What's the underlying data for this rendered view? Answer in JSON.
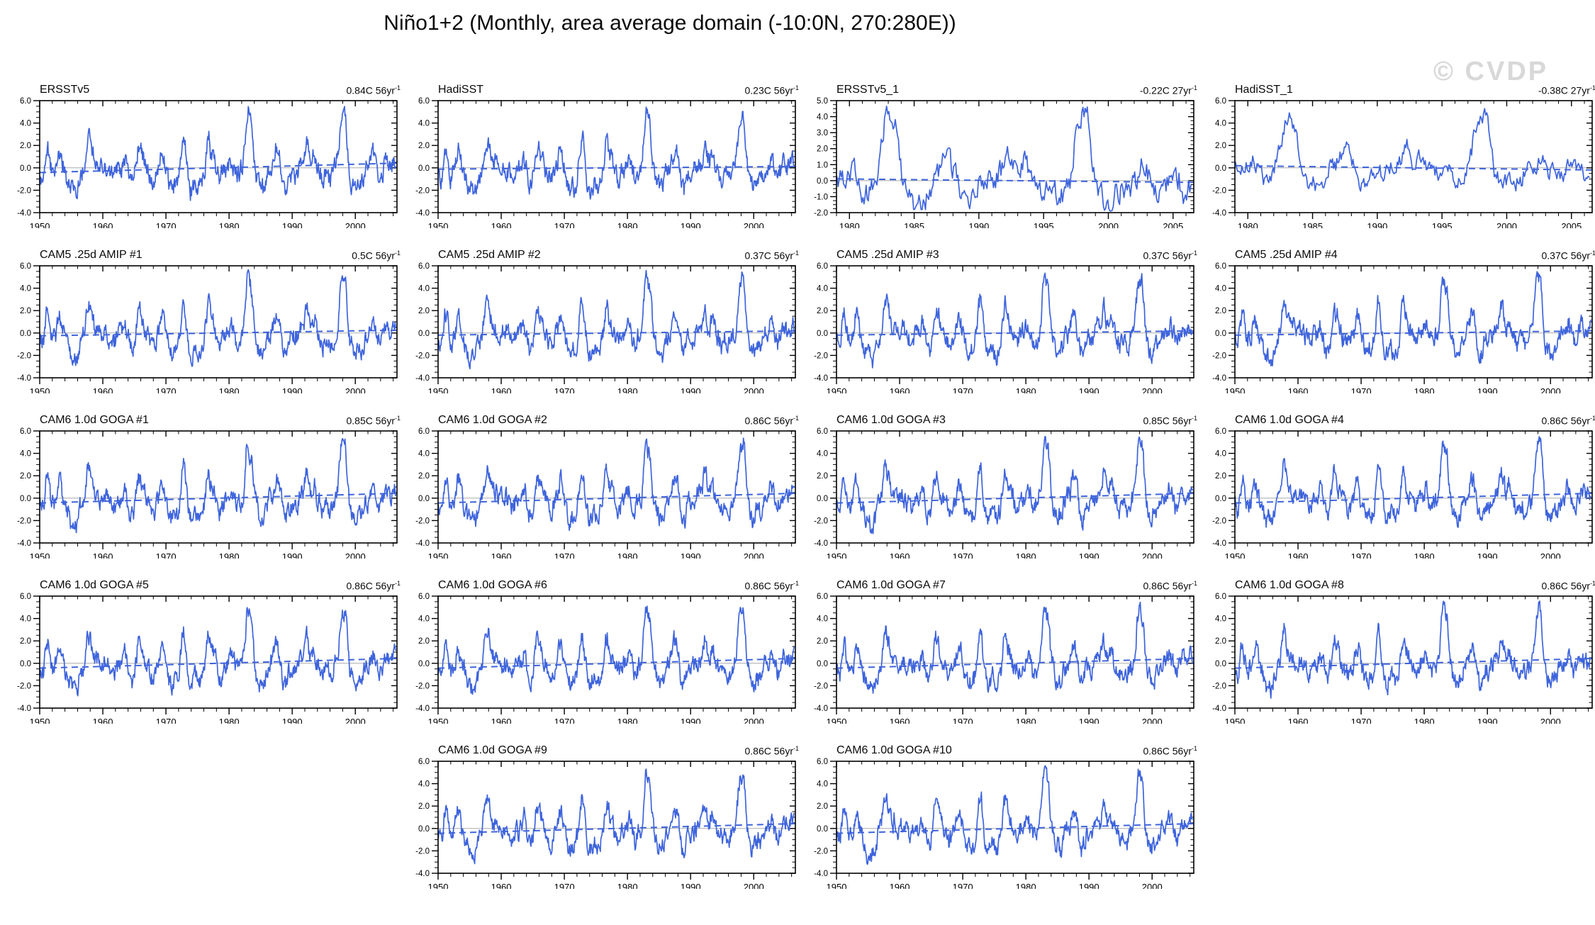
{
  "page": {
    "title": "Niño1+2 (Monthly, area average domain (-10:0N, 270:280E))",
    "watermark": "© CVDP"
  },
  "colors": {
    "line": "#3E64DC",
    "trend_line": "#3E64DC",
    "zero_line": "#aaaaaa",
    "frame": "#000000",
    "watermark": "#d8d8d8"
  },
  "chart_data": {
    "type": "line",
    "title": "Niño1+2 (Monthly, area average domain (-10:0N, 270:280E))",
    "xlabel": "",
    "ylabel": "",
    "grid": "off",
    "axes": {
      "long": {
        "x_range": [
          1950,
          2006.6
        ],
        "x_major_ticks": [
          1950,
          1960,
          1970,
          1980,
          1990,
          2000
        ],
        "x_minor_step": 2,
        "x_major_mod": 10,
        "y_range": [
          -4,
          6
        ],
        "y_major_ticks": [
          -4,
          -2,
          0,
          2,
          4,
          6
        ],
        "y_minor_step": 0.5
      },
      "short": {
        "x_range": [
          1979,
          2006.6
        ],
        "x_major_ticks": [
          1980,
          1985,
          1990,
          1995,
          2000,
          2005
        ],
        "x_minor_step": 1,
        "x_major_mod": 5,
        "y_range": [
          -4,
          6
        ],
        "y_major_ticks": [
          -4,
          -2,
          0,
          2,
          4,
          6
        ],
        "y_minor_step": 0.5
      },
      "short_tall": {
        "x_range": [
          1979,
          2006.6
        ],
        "x_major_ticks": [
          1980,
          1985,
          1990,
          1995,
          2000,
          2005
        ],
        "x_minor_step": 1,
        "x_major_mod": 5,
        "y_range": [
          -2,
          5
        ],
        "y_major_ticks": [
          -2,
          -1,
          0,
          1,
          2,
          3,
          4,
          5
        ],
        "y_minor_step": 0.25
      }
    },
    "enso_events": {
      "long": [
        [
          1950.5,
          -0.9
        ],
        [
          1951.2,
          2.0
        ],
        [
          1952.0,
          -0.6
        ],
        [
          1953.2,
          1.8
        ],
        [
          1954.9,
          -1.7,
          0.5
        ],
        [
          1955.9,
          -1.6,
          0.45
        ],
        [
          1957.7,
          2.7,
          0.35
        ],
        [
          1958.3,
          1.2
        ],
        [
          1959.2,
          0.7
        ],
        [
          1960.5,
          0.4
        ],
        [
          1961.8,
          -0.7
        ],
        [
          1963.6,
          1.1
        ],
        [
          1964.6,
          -1.4,
          0.4
        ],
        [
          1965.7,
          2.3,
          0.32
        ],
        [
          1966.4,
          0.9
        ],
        [
          1967.9,
          -1.0,
          0.4
        ],
        [
          1969.4,
          1.9
        ],
        [
          1970.9,
          -1.7,
          0.45
        ],
        [
          1971.8,
          -1.0
        ],
        [
          1972.8,
          3.1,
          0.33
        ],
        [
          1974.0,
          -1.8,
          0.4
        ],
        [
          1975.3,
          -1.7,
          0.45
        ],
        [
          1976.7,
          2.6,
          0.3
        ],
        [
          1977.4,
          0.9
        ],
        [
          1978.6,
          -0.8
        ],
        [
          1980.3,
          0.9
        ],
        [
          1981.2,
          -0.7
        ],
        [
          1982.95,
          5.2,
          0.33
        ],
        [
          1983.6,
          3.2,
          0.25
        ],
        [
          1984.9,
          -1.3,
          0.45
        ],
        [
          1985.6,
          -1.1
        ],
        [
          1987.6,
          2.0,
          0.4
        ],
        [
          1988.9,
          -1.8,
          0.4
        ],
        [
          1990.2,
          -0.4
        ],
        [
          1991.4,
          0.6
        ],
        [
          1992.3,
          2.5,
          0.3
        ],
        [
          1993.4,
          1.4
        ],
        [
          1994.9,
          -0.9
        ],
        [
          1996.0,
          -1.1
        ],
        [
          1997.9,
          4.7,
          0.4
        ],
        [
          1998.5,
          3.0,
          0.25
        ],
        [
          1999.9,
          -1.6,
          0.5
        ],
        [
          2001.0,
          -1.0
        ],
        [
          2002.8,
          1.0
        ],
        [
          2003.8,
          -0.6
        ],
        [
          2005.0,
          0.8
        ],
        [
          2006.2,
          1.0
        ]
      ],
      "short": [
        [
          1979.3,
          0.3
        ],
        [
          1980.3,
          0.8
        ],
        [
          1981.3,
          -0.8
        ],
        [
          1982.95,
          4.3,
          0.4
        ],
        [
          1983.6,
          2.6,
          0.25
        ],
        [
          1984.9,
          -1.0,
          0.45
        ],
        [
          1985.7,
          -1.1
        ],
        [
          1987.5,
          1.7,
          0.45
        ],
        [
          1988.9,
          -1.4,
          0.4
        ],
        [
          1990.3,
          -0.5
        ],
        [
          1991.5,
          0.4
        ],
        [
          1992.3,
          2.1,
          0.3
        ],
        [
          1993.4,
          1.3
        ],
        [
          1994.9,
          -0.7
        ],
        [
          1996.1,
          -1.2
        ],
        [
          1997.85,
          4.5,
          0.42
        ],
        [
          1998.5,
          2.8,
          0.25
        ],
        [
          1999.9,
          -1.2,
          0.5
        ],
        [
          2001.0,
          -0.7
        ],
        [
          2002.7,
          0.9
        ],
        [
          2003.9,
          -0.8
        ],
        [
          2005.0,
          0.9
        ],
        [
          2006.1,
          -0.9
        ]
      ]
    },
    "panels": [
      {
        "name": "ERSSTv5",
        "trend": "0.84C 56yr",
        "exp": "-1",
        "axis": "long",
        "events": "long",
        "seed": 3,
        "trend_y": [
          -0.42,
          0.42
        ],
        "row": 0,
        "col": 0
      },
      {
        "name": "HadiSST",
        "trend": "0.23C 56yr",
        "exp": "-1",
        "axis": "long",
        "events": "long",
        "seed": 7,
        "trend_y": [
          -0.12,
          0.12
        ],
        "row": 0,
        "col": 1
      },
      {
        "name": "ERSSTv5_1",
        "trend": "-0.22C 27yr",
        "exp": "-1",
        "axis": "short_tall",
        "events": "short",
        "seed": 13,
        "trend_y": [
          0.11,
          -0.11
        ],
        "row": 0,
        "col": 2
      },
      {
        "name": "HadiSST_1",
        "trend": "-0.38C 27yr",
        "exp": "-1",
        "axis": "short",
        "events": "short",
        "seed": 19,
        "trend_y": [
          0.19,
          -0.19
        ],
        "row": 0,
        "col": 3
      },
      {
        "name": "CAM5 .25d AMIP #1",
        "trend": "0.5C 56yr",
        "exp": "-1",
        "axis": "long",
        "events": "long",
        "seed": 23,
        "trend_y": [
          -0.25,
          0.25
        ],
        "row": 1,
        "col": 0
      },
      {
        "name": "CAM5 .25d AMIP #2",
        "trend": "0.37C 56yr",
        "exp": "-1",
        "axis": "long",
        "events": "long",
        "seed": 29,
        "trend_y": [
          -0.19,
          0.19
        ],
        "row": 1,
        "col": 1
      },
      {
        "name": "CAM5 .25d AMIP #3",
        "trend": "0.37C 56yr",
        "exp": "-1",
        "axis": "long",
        "events": "long",
        "seed": 31,
        "trend_y": [
          -0.19,
          0.19
        ],
        "row": 1,
        "col": 2
      },
      {
        "name": "CAM5 .25d AMIP #4",
        "trend": "0.37C 56yr",
        "exp": "-1",
        "axis": "long",
        "events": "long",
        "seed": 37,
        "trend_y": [
          -0.19,
          0.19
        ],
        "row": 1,
        "col": 3
      },
      {
        "name": "CAM6 1.0d GOGA #1",
        "trend": "0.85C 56yr",
        "exp": "-1",
        "axis": "long",
        "events": "long",
        "seed": 41,
        "trend_y": [
          -0.43,
          0.43
        ],
        "row": 2,
        "col": 0
      },
      {
        "name": "CAM6 1.0d GOGA #2",
        "trend": "0.86C 56yr",
        "exp": "-1",
        "axis": "long",
        "events": "long",
        "seed": 43,
        "trend_y": [
          -0.43,
          0.43
        ],
        "row": 2,
        "col": 1
      },
      {
        "name": "CAM6 1.0d GOGA #3",
        "trend": "0.85C 56yr",
        "exp": "-1",
        "axis": "long",
        "events": "long",
        "seed": 47,
        "trend_y": [
          -0.43,
          0.43
        ],
        "row": 2,
        "col": 2
      },
      {
        "name": "CAM6 1.0d GOGA #4",
        "trend": "0.86C 56yr",
        "exp": "-1",
        "axis": "long",
        "events": "long",
        "seed": 53,
        "trend_y": [
          -0.43,
          0.43
        ],
        "row": 2,
        "col": 3
      },
      {
        "name": "CAM6 1.0d GOGA #5",
        "trend": "0.86C 56yr",
        "exp": "-1",
        "axis": "long",
        "events": "long",
        "seed": 59,
        "trend_y": [
          -0.43,
          0.43
        ],
        "row": 3,
        "col": 0
      },
      {
        "name": "CAM6 1.0d GOGA #6",
        "trend": "0.86C 56yr",
        "exp": "-1",
        "axis": "long",
        "events": "long",
        "seed": 61,
        "trend_y": [
          -0.43,
          0.43
        ],
        "row": 3,
        "col": 1
      },
      {
        "name": "CAM6 1.0d GOGA #7",
        "trend": "0.86C 56yr",
        "exp": "-1",
        "axis": "long",
        "events": "long",
        "seed": 67,
        "trend_y": [
          -0.43,
          0.43
        ],
        "row": 3,
        "col": 2
      },
      {
        "name": "CAM6 1.0d GOGA #8",
        "trend": "0.86C 56yr",
        "exp": "-1",
        "axis": "long",
        "events": "long",
        "seed": 71,
        "trend_y": [
          -0.43,
          0.43
        ],
        "row": 3,
        "col": 3
      },
      {
        "name": "CAM6 1.0d GOGA #9",
        "trend": "0.86C 56yr",
        "exp": "-1",
        "axis": "long",
        "events": "long",
        "seed": 73,
        "trend_y": [
          -0.43,
          0.43
        ],
        "row": 4,
        "col": 1
      },
      {
        "name": "CAM6 1.0d GOGA #10",
        "trend": "0.86C 56yr",
        "exp": "-1",
        "axis": "long",
        "events": "long",
        "seed": 79,
        "trend_y": [
          -0.43,
          0.43
        ],
        "row": 4,
        "col": 2
      }
    ]
  }
}
